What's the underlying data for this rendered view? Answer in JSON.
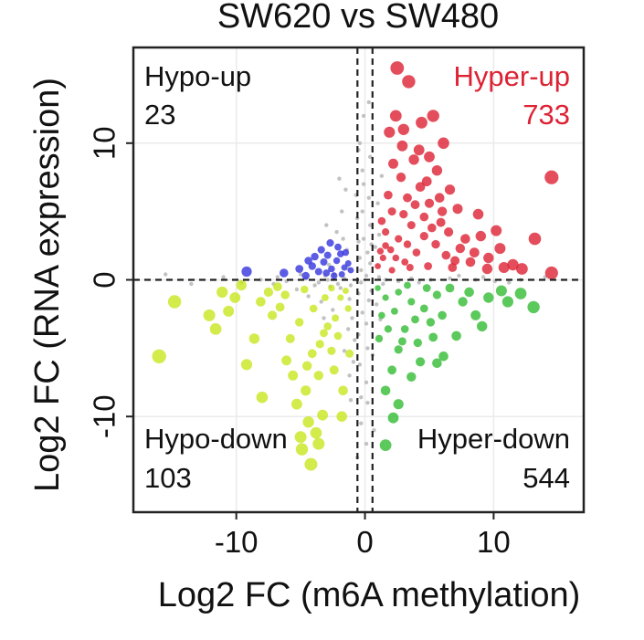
{
  "chart_data": {
    "type": "scatter",
    "title": "SW620 vs SW480",
    "xlabel": "Log2 FC (m6A methylation)",
    "ylabel": "Log2 FC (RNA expression)",
    "xlim": [
      -18,
      17
    ],
    "ylim": [
      -17,
      17
    ],
    "xticks": [
      -10,
      0,
      10
    ],
    "yticks": [
      -10,
      0,
      10
    ],
    "grid": true,
    "x_cutoffs": [
      -0.585,
      0.585
    ],
    "y_cutoff": 0,
    "quadrants": [
      {
        "name": "Hypo-up",
        "count": "23",
        "color": "#3333dd",
        "position": "top-left"
      },
      {
        "name": "Hyper-up",
        "count": "733",
        "color": "#dd2233",
        "position": "top-right"
      },
      {
        "name": "Hypo-down",
        "count": "103",
        "color": "#c8e61e",
        "position": "bottom-left"
      },
      {
        "name": "Hyper-down",
        "count": "544",
        "color": "#33bb33",
        "position": "bottom-right"
      }
    ],
    "colors": {
      "hyper_up": "#dd2233",
      "hypo_up": "#3333dd",
      "hypo_down": "#c8e61e",
      "hyper_down": "#33bb33",
      "not_significant": "#bbbbbb"
    },
    "points": {
      "hyper_up": [
        [
          2.5,
          15.5
        ],
        [
          3.4,
          14.5
        ],
        [
          2.2,
          8.5
        ],
        [
          3.0,
          11.0
        ],
        [
          4.2,
          9.5
        ],
        [
          5.6,
          8.0
        ],
        [
          6.1,
          10.0
        ],
        [
          4.8,
          7.2
        ],
        [
          3.3,
          6.0
        ],
        [
          2.1,
          5.0
        ],
        [
          1.6,
          3.5
        ],
        [
          1.2,
          2.1
        ],
        [
          1.0,
          1.0
        ],
        [
          2.6,
          3.0
        ],
        [
          3.6,
          4.0
        ],
        [
          4.6,
          3.2
        ],
        [
          5.5,
          2.6
        ],
        [
          6.3,
          1.8
        ],
        [
          7.4,
          2.3
        ],
        [
          8.2,
          1.3
        ],
        [
          9.6,
          1.6
        ],
        [
          10.5,
          2.3
        ],
        [
          11.5,
          1.1
        ],
        [
          13.2,
          3.0
        ],
        [
          12.2,
          0.8
        ],
        [
          14.5,
          0.5
        ],
        [
          10.2,
          3.6
        ],
        [
          8.8,
          4.8
        ],
        [
          7.2,
          5.2
        ],
        [
          6.6,
          6.6
        ],
        [
          5.0,
          5.6
        ],
        [
          4.0,
          2.0
        ],
        [
          3.1,
          1.3
        ],
        [
          2.1,
          0.7
        ],
        [
          1.6,
          2.5
        ],
        [
          1.3,
          4.3
        ],
        [
          2.8,
          7.5
        ],
        [
          4.4,
          11.5
        ],
        [
          5.3,
          12.0
        ],
        [
          14.5,
          7.5
        ],
        [
          9.5,
          0.8
        ],
        [
          3.8,
          8.8
        ],
        [
          2.4,
          12.0
        ],
        [
          5.9,
          4.2
        ],
        [
          7.8,
          3.0
        ],
        [
          6.8,
          0.9
        ],
        [
          4.9,
          1.0
        ],
        [
          3.5,
          0.9
        ],
        [
          2.0,
          2.2
        ],
        [
          1.8,
          6.2
        ],
        [
          3.9,
          5.5
        ],
        [
          5.2,
          3.8
        ],
        [
          4.3,
          6.8
        ],
        [
          2.9,
          9.8
        ],
        [
          1.9,
          10.8
        ],
        [
          6.5,
          3.5
        ],
        [
          8.5,
          2.0
        ],
        [
          3.3,
          2.6
        ],
        [
          2.4,
          1.6
        ],
        [
          4.6,
          4.6
        ],
        [
          5.8,
          6.0
        ],
        [
          3.0,
          4.8
        ],
        [
          1.4,
          1.6
        ],
        [
          7.0,
          1.4
        ],
        [
          10.8,
          0.9
        ],
        [
          9.0,
          3.2
        ],
        [
          5.0,
          9.0
        ],
        [
          6.0,
          5.0
        ]
      ],
      "hypo_up": [
        [
          -9.2,
          0.6
        ],
        [
          -6.3,
          0.5
        ],
        [
          -4.1,
          1.0
        ],
        [
          -3.2,
          1.3
        ],
        [
          -2.6,
          0.8
        ],
        [
          -1.9,
          1.9
        ],
        [
          -3.6,
          0.6
        ],
        [
          -2.2,
          1.4
        ],
        [
          -4.6,
          0.3
        ],
        [
          -1.6,
          0.9
        ],
        [
          -2.9,
          1.8
        ],
        [
          -1.8,
          0.4
        ],
        [
          -5.1,
          0.8
        ],
        [
          -3.9,
          1.7
        ],
        [
          -2.4,
          0.3
        ],
        [
          -1.3,
          1.2
        ],
        [
          -3.0,
          0.5
        ],
        [
          -2.1,
          2.4
        ],
        [
          -4.4,
          1.4
        ],
        [
          -1.5,
          2.0
        ],
        [
          -2.7,
          2.7
        ],
        [
          -3.4,
          2.2
        ],
        [
          -1.1,
          0.7
        ]
      ],
      "hypo_down": [
        [
          -4.2,
          -13.5
        ],
        [
          -3.6,
          -12.0
        ],
        [
          -5.0,
          -11.5
        ],
        [
          -3.3,
          -9.9
        ],
        [
          -4.4,
          -10.4
        ],
        [
          -4.6,
          -8.1
        ],
        [
          -5.6,
          -7.0
        ],
        [
          -6.1,
          -5.9
        ],
        [
          -4.1,
          -5.4
        ],
        [
          -3.2,
          -3.9
        ],
        [
          -2.3,
          -2.8
        ],
        [
          -1.9,
          -1.3
        ],
        [
          -8.1,
          -1.6
        ],
        [
          -10.1,
          -1.3
        ],
        [
          -11.1,
          -0.9
        ],
        [
          -11.6,
          -3.6
        ],
        [
          -14.8,
          -1.6
        ],
        [
          -16.0,
          -5.6
        ],
        [
          -8.6,
          -4.3
        ],
        [
          -7.2,
          -2.6
        ],
        [
          -6.2,
          -1.1
        ],
        [
          -5.1,
          -3.1
        ],
        [
          -4.0,
          -2.1
        ],
        [
          -3.1,
          -1.3
        ],
        [
          -2.6,
          -5.2
        ],
        [
          -3.6,
          -7.0
        ],
        [
          -5.3,
          -9.1
        ],
        [
          -2.6,
          -0.6
        ],
        [
          -1.3,
          -2.1
        ],
        [
          -2.1,
          -4.1
        ],
        [
          -1.7,
          -8.1
        ],
        [
          -9.2,
          -6.2
        ],
        [
          -8.0,
          -8.6
        ],
        [
          -12.1,
          -2.6
        ],
        [
          -6.8,
          -0.5
        ],
        [
          -4.7,
          -0.7
        ],
        [
          -3.5,
          -4.7
        ],
        [
          -2.9,
          -3.4
        ],
        [
          -1.5,
          -0.8
        ],
        [
          -1.2,
          -5.4
        ],
        [
          -2.4,
          -6.6
        ],
        [
          -1.8,
          -10.0
        ],
        [
          -4.5,
          -6.3
        ],
        [
          -5.8,
          -4.3
        ],
        [
          -6.6,
          -2.0
        ],
        [
          -7.5,
          -0.9
        ],
        [
          -9.6,
          -0.4
        ],
        [
          -10.6,
          -2.3
        ],
        [
          -3.8,
          -11.2
        ],
        [
          -4.9,
          -12.4
        ]
      ],
      "hyper_down": [
        [
          1.0,
          -0.6
        ],
        [
          1.6,
          -1.3
        ],
        [
          2.6,
          -0.9
        ],
        [
          3.6,
          -1.6
        ],
        [
          4.6,
          -2.1
        ],
        [
          5.6,
          -1.1
        ],
        [
          6.6,
          -0.6
        ],
        [
          7.6,
          -1.6
        ],
        [
          8.6,
          -2.6
        ],
        [
          9.6,
          -1.3
        ],
        [
          10.6,
          -0.8
        ],
        [
          11.1,
          -1.6
        ],
        [
          12.1,
          -1.0
        ],
        [
          13.1,
          -2.0
        ],
        [
          3.1,
          -3.6
        ],
        [
          4.1,
          -4.6
        ],
        [
          5.1,
          -3.1
        ],
        [
          6.1,
          -5.6
        ],
        [
          2.6,
          -5.1
        ],
        [
          2.1,
          -6.6
        ],
        [
          1.6,
          -8.1
        ],
        [
          3.6,
          -7.1
        ],
        [
          2.6,
          -9.1
        ],
        [
          2.2,
          -10.1
        ],
        [
          1.6,
          -12.1
        ],
        [
          5.6,
          -6.1
        ],
        [
          7.1,
          -4.1
        ],
        [
          9.1,
          -3.4
        ],
        [
          6.0,
          -2.6
        ],
        [
          8.1,
          -0.9
        ],
        [
          1.3,
          -2.6
        ],
        [
          2.3,
          -2.3
        ],
        [
          3.3,
          -0.4
        ],
        [
          4.8,
          -0.6
        ],
        [
          1.1,
          -4.3
        ],
        [
          1.8,
          -3.6
        ],
        [
          3.9,
          -2.9
        ],
        [
          5.3,
          -4.2
        ],
        [
          4.3,
          -6.0
        ],
        [
          2.9,
          -4.5
        ]
      ],
      "not_significant": [
        [
          0.1,
          0.3
        ],
        [
          -0.3,
          -0.2
        ],
        [
          0.4,
          1.2
        ],
        [
          -0.5,
          -1.0
        ],
        [
          0.2,
          2.0
        ],
        [
          -0.2,
          -2.4
        ],
        [
          0.3,
          -1.5
        ],
        [
          -0.4,
          1.6
        ],
        [
          0.5,
          -0.8
        ],
        [
          -0.1,
          3.0
        ],
        [
          0.1,
          -3.2
        ],
        [
          -0.3,
          0.7
        ],
        [
          0.4,
          4.0
        ],
        [
          -0.5,
          -4.0
        ],
        [
          0.2,
          -5.0
        ],
        [
          -0.2,
          5.0
        ],
        [
          0.3,
          6.0
        ],
        [
          -0.4,
          -6.2
        ],
        [
          0.1,
          -7.5
        ],
        [
          -0.1,
          7.0
        ],
        [
          0.5,
          2.6
        ],
        [
          -0.5,
          2.8
        ],
        [
          -1.1,
          -0.4
        ],
        [
          1.1,
          0.2
        ],
        [
          -1.6,
          0.1
        ],
        [
          -2.1,
          -0.3
        ],
        [
          -2.9,
          0.0
        ],
        [
          -3.6,
          -0.2
        ],
        [
          -4.6,
          0.1
        ],
        [
          -6.1,
          -0.1
        ],
        [
          -8.1,
          0.0
        ],
        [
          -9.6,
          -0.2
        ],
        [
          1.6,
          0.0
        ],
        [
          2.6,
          -0.1
        ],
        [
          3.6,
          0.1
        ],
        [
          5.1,
          0.0
        ],
        [
          6.6,
          0.1
        ],
        [
          8.6,
          0.0
        ],
        [
          10.1,
          -0.1
        ],
        [
          12.1,
          0.0
        ],
        [
          -0.2,
          8.0
        ],
        [
          0.4,
          9.0
        ],
        [
          -0.4,
          10.0
        ],
        [
          0.2,
          -9.0
        ],
        [
          -0.3,
          -10.5
        ],
        [
          0.1,
          -12.0
        ],
        [
          -0.1,
          12.0
        ],
        [
          0.3,
          13.0
        ],
        [
          -0.6,
          4.5
        ],
        [
          0.6,
          -5.5
        ],
        [
          -1.3,
          0.8
        ],
        [
          1.4,
          -0.3
        ],
        [
          -1.9,
          -0.6
        ],
        [
          -2.4,
          0.4
        ],
        [
          -2.7,
          -0.5
        ],
        [
          -3.1,
          0.3
        ],
        [
          -3.9,
          -0.4
        ],
        [
          -1.2,
          -1.4
        ],
        [
          -1.4,
          2.2
        ],
        [
          -1.7,
          3.0
        ],
        [
          -2.2,
          3.5
        ],
        [
          -3.0,
          4.0
        ],
        [
          -1.8,
          5.0
        ],
        [
          -1.0,
          -2.8
        ],
        [
          -1.3,
          -3.6
        ],
        [
          -0.8,
          -4.4
        ],
        [
          -1.6,
          -5.2
        ],
        [
          -0.9,
          -6.0
        ],
        [
          -1.2,
          -7.0
        ],
        [
          0.9,
          -1.8
        ],
        [
          1.2,
          -2.9
        ],
        [
          0.8,
          2.4
        ],
        [
          1.1,
          3.3
        ],
        [
          -0.7,
          6.2
        ],
        [
          -2.5,
          -2.2
        ],
        [
          -3.2,
          -2.8
        ],
        [
          -4.4,
          -1.2
        ],
        [
          -5.3,
          -0.7
        ],
        [
          -7.1,
          -0.3
        ],
        [
          -0.3,
          -8.6
        ],
        [
          -0.5,
          9.5
        ],
        [
          -1.5,
          6.6
        ],
        [
          -2.0,
          7.4
        ],
        [
          1.0,
          5.6
        ],
        [
          0.7,
          -11.0
        ],
        [
          -0.6,
          -13.0
        ],
        [
          -5.0,
          0.4
        ],
        [
          -6.8,
          0.2
        ],
        [
          -11.0,
          0.2
        ],
        [
          -13.5,
          -0.3
        ],
        [
          -15.5,
          0.4
        ],
        [
          4.2,
          -0.2
        ],
        [
          7.3,
          0.3
        ],
        [
          9.2,
          0.2
        ],
        [
          11.2,
          -0.2
        ],
        [
          14.0,
          0.2
        ],
        [
          -2.8,
          1.1
        ],
        [
          -3.4,
          -1.6
        ],
        [
          -1.1,
          -8.8
        ],
        [
          1.3,
          7.6
        ]
      ]
    }
  }
}
